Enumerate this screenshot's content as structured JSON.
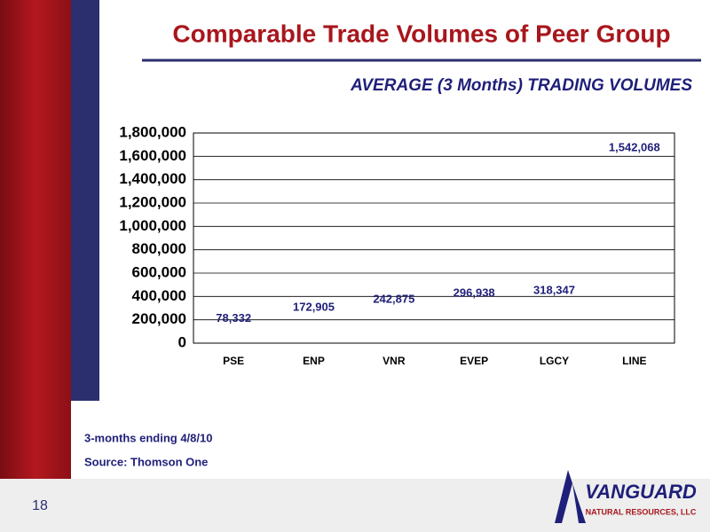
{
  "slide": {
    "title": "Comparable Trade Volumes of Peer Group",
    "footnotes": [
      "3-months ending 4/8/10",
      "Source: Thomson One"
    ],
    "page_number": "18",
    "logo": {
      "name": "VANGUARD",
      "tagline": "NATURAL RESOURCES, LLC"
    }
  },
  "chart_data": {
    "type": "bar",
    "title": "AVERAGE (3 Months) TRADING VOLUMES",
    "categories": [
      "PSE",
      "ENP",
      "VNR",
      "EVEP",
      "LGCY",
      "LINE"
    ],
    "values": [
      78332,
      172905,
      242875,
      296938,
      318347,
      1542068
    ],
    "value_labels": [
      "78,332",
      "172,905",
      "242,875",
      "296,938",
      "318,347",
      "1,542,068"
    ],
    "label_color": "#1f1f7a",
    "ylim": [
      0,
      1800000
    ],
    "yticks": [
      0,
      {
        "value": 200000,
        "label": "200,000"
      },
      {
        "value": 400000,
        "label": "400,000"
      },
      {
        "value": 600000,
        "label": "600,000"
      },
      {
        "value": 800000,
        "label": "800,000"
      },
      {
        "value": 1000000,
        "label": "1,000,000"
      },
      {
        "value": 1200000,
        "label": "1,200,000"
      },
      {
        "value": 1400000,
        "label": "1,400,000"
      },
      {
        "value": 1600000,
        "label": "1,600,000"
      },
      {
        "value": 1800000,
        "label": "1,800,000"
      }
    ],
    "grid": true
  }
}
